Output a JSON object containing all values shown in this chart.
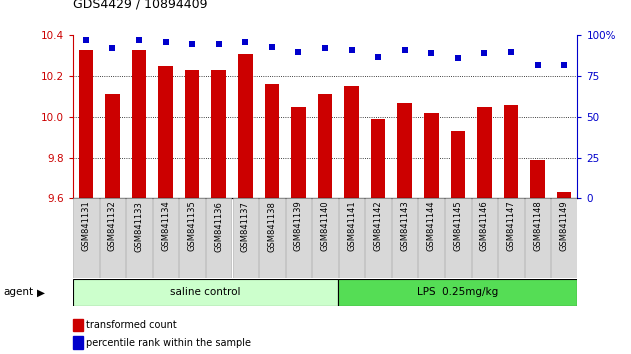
{
  "title": "GDS4429 / 10894409",
  "samples": [
    "GSM841131",
    "GSM841132",
    "GSM841133",
    "GSM841134",
    "GSM841135",
    "GSM841136",
    "GSM841137",
    "GSM841138",
    "GSM841139",
    "GSM841140",
    "GSM841141",
    "GSM841142",
    "GSM841143",
    "GSM841144",
    "GSM841145",
    "GSM841146",
    "GSM841147",
    "GSM841148",
    "GSM841149"
  ],
  "red_values": [
    10.33,
    10.11,
    10.33,
    10.25,
    10.23,
    10.23,
    10.31,
    10.16,
    10.05,
    10.11,
    10.15,
    9.99,
    10.07,
    10.02,
    9.93,
    10.05,
    10.06,
    9.79,
    9.63
  ],
  "blue_values": [
    97,
    92,
    97,
    96,
    95,
    95,
    96,
    93,
    90,
    92,
    91,
    87,
    91,
    89,
    86,
    89,
    90,
    82,
    82
  ],
  "ylim_left": [
    9.6,
    10.4
  ],
  "ylim_right": [
    0,
    100
  ],
  "yticks_left": [
    9.6,
    9.8,
    10.0,
    10.2,
    10.4
  ],
  "yticks_right": [
    0,
    25,
    50,
    75,
    100
  ],
  "group1_label": "saline control",
  "group2_label": "LPS  0.25mg/kg",
  "group1_count": 10,
  "group2_count": 9,
  "agent_label": "agent",
  "legend_red": "transformed count",
  "legend_blue": "percentile rank within the sample",
  "bar_color": "#cc0000",
  "dot_color": "#0000cc",
  "group1_bg": "#ccffcc",
  "group2_bg": "#55dd55",
  "left_axis_color": "#cc0000",
  "right_axis_color": "#0000cc",
  "grid_yticks": [
    9.8,
    10.0,
    10.2
  ],
  "fig_width": 6.31,
  "fig_height": 3.54
}
